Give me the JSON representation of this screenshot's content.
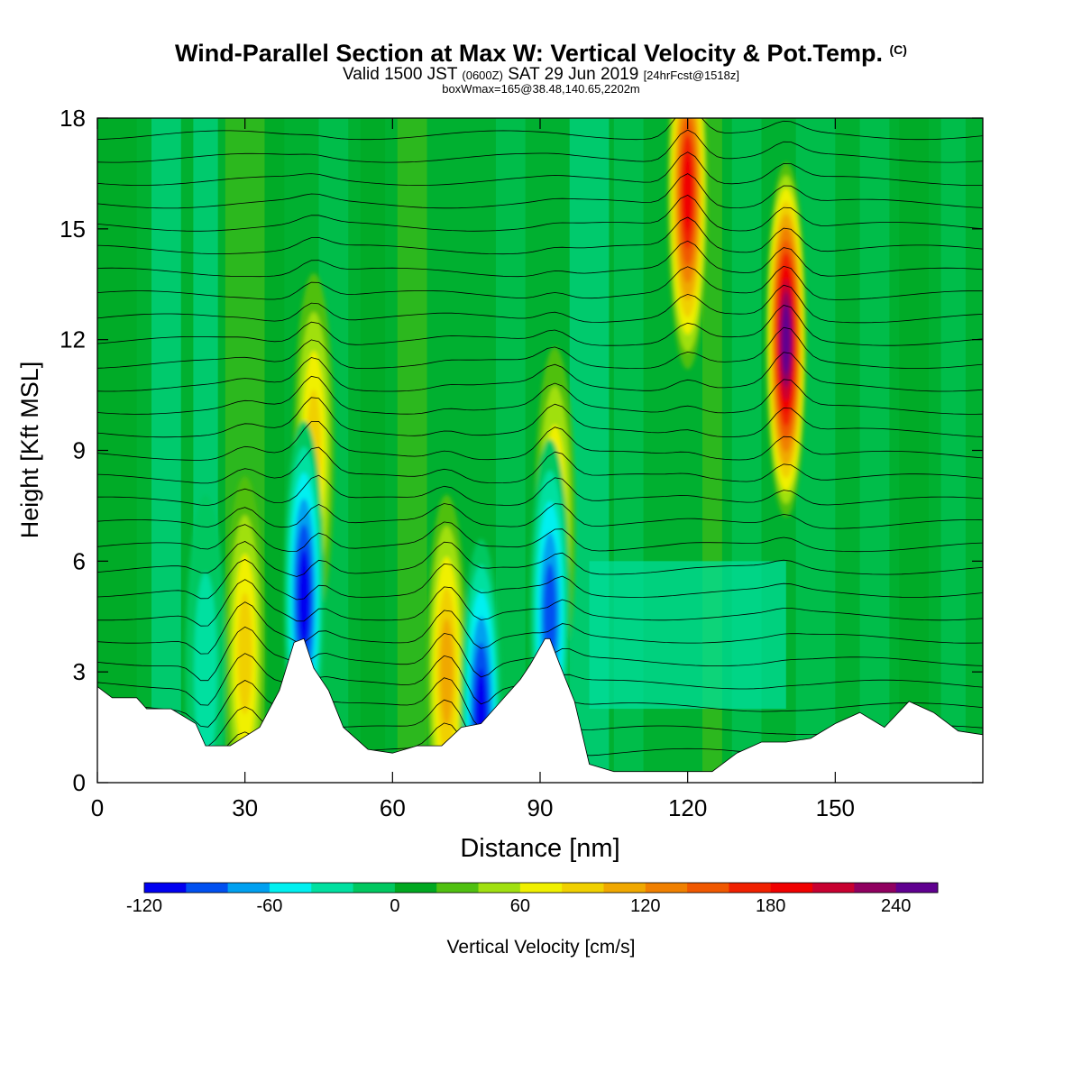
{
  "header": {
    "title": "Wind-Parallel Section at Max W: Vertical Velocity & Pot.Temp.",
    "copyright": "(C)",
    "valid_prefix": "Valid 1500 JST",
    "valid_utc": "(0600Z)",
    "valid_date": "SAT 29 Jun 2019",
    "forecast": "[24hrFcst@1518z]",
    "box_info": "boxWmax=165@38.48,140.65,2202m"
  },
  "chart_data": {
    "type": "heatmap",
    "xlabel": "Distance [nm]",
    "ylabel": "Height [Kft MSL]",
    "xlim": [
      0,
      180
    ],
    "ylim": [
      0,
      18
    ],
    "x_ticks": [
      0,
      30,
      60,
      90,
      120,
      150
    ],
    "y_ticks": [
      0,
      3,
      6,
      9,
      12,
      15,
      18
    ],
    "colorbar": {
      "label": "Vertical Velocity [cm/s]",
      "levels": [
        -120,
        -100,
        -80,
        -60,
        -40,
        -20,
        0,
        20,
        40,
        60,
        80,
        100,
        120,
        140,
        160,
        180,
        200,
        220,
        240,
        260
      ],
      "tick_labels": [
        -120,
        -60,
        0,
        60,
        120,
        180,
        240
      ],
      "colors": [
        "#0000f0",
        "#0050f0",
        "#00a0f0",
        "#00f0f0",
        "#00e0a0",
        "#00c860",
        "#00a820",
        "#50c010",
        "#a0e010",
        "#f0f000",
        "#f0d000",
        "#f0a800",
        "#f08000",
        "#f05800",
        "#f02000",
        "#f00000",
        "#c80030",
        "#900060",
        "#600090"
      ]
    },
    "terrain_top_kft": [
      [
        0,
        2.6
      ],
      [
        3,
        2.3
      ],
      [
        8,
        2.3
      ],
      [
        10,
        2.0
      ],
      [
        15,
        2.0
      ],
      [
        20,
        1.6
      ],
      [
        22,
        1.0
      ],
      [
        27,
        1.0
      ],
      [
        33,
        1.5
      ],
      [
        37,
        2.5
      ],
      [
        40,
        3.8
      ],
      [
        42,
        3.9
      ],
      [
        44,
        3.1
      ],
      [
        47,
        2.5
      ],
      [
        50,
        1.5
      ],
      [
        55,
        0.9
      ],
      [
        60,
        0.8
      ],
      [
        65,
        1.0
      ],
      [
        70,
        1.0
      ],
      [
        74,
        1.5
      ],
      [
        78,
        1.6
      ],
      [
        82,
        2.2
      ],
      [
        86,
        2.8
      ],
      [
        88,
        3.2
      ],
      [
        91,
        3.9
      ],
      [
        92,
        3.9
      ],
      [
        94,
        3.2
      ],
      [
        97,
        2.2
      ],
      [
        100,
        0.5
      ],
      [
        105,
        0.3
      ],
      [
        115,
        0.3
      ],
      [
        125,
        0.3
      ],
      [
        130,
        0.8
      ],
      [
        135,
        1.1
      ],
      [
        140,
        1.1
      ],
      [
        145,
        1.2
      ],
      [
        150,
        1.6
      ],
      [
        155,
        1.9
      ],
      [
        160,
        1.5
      ],
      [
        165,
        2.2
      ],
      [
        170,
        1.9
      ],
      [
        175,
        1.4
      ],
      [
        180,
        1.3
      ]
    ],
    "updraft_cores": [
      {
        "x": 120,
        "z": 16,
        "w": 175
      },
      {
        "x": 140,
        "z": 12,
        "w": 230
      },
      {
        "x": 44,
        "z": 9,
        "w": 80
      },
      {
        "x": 93,
        "z": 7,
        "w": 80
      },
      {
        "x": 71,
        "z": 3,
        "w": 90
      },
      {
        "x": 30,
        "z": 3.5,
        "w": 70
      }
    ],
    "downdraft_cores": [
      {
        "x": 42,
        "z": 5,
        "w": -110
      },
      {
        "x": 92,
        "z": 4.5,
        "w": -100
      },
      {
        "x": 78,
        "z": 1.8,
        "w": -120
      },
      {
        "x": 22,
        "z": 3,
        "w": -40
      }
    ]
  }
}
